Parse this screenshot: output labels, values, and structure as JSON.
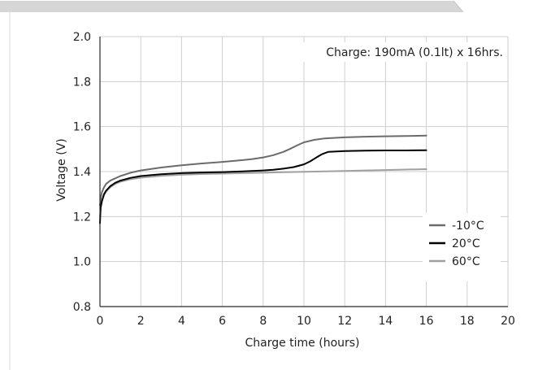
{
  "chart_data": {
    "type": "line",
    "title": "",
    "annotation": "Charge: 190mA (0.1lt) x 16hrs.",
    "xlabel": "Charge time (hours)",
    "ylabel": "Voltage (V)",
    "xlim": [
      0,
      20
    ],
    "ylim": [
      0.8,
      2.0
    ],
    "xticks": [
      "0",
      "2",
      "4",
      "6",
      "8",
      "10",
      "12",
      "14",
      "16",
      "18",
      "20"
    ],
    "yticks": [
      "0.8",
      "1.0",
      "1.2",
      "1.4",
      "1.6",
      "1.8",
      "2.0"
    ],
    "grid": true,
    "legend_position": "bottom-right",
    "series": [
      {
        "name": "-10°C",
        "color": "#6b6b6b",
        "x": [
          0,
          0.05,
          0.1,
          0.2,
          0.3,
          0.5,
          0.75,
          1,
          1.5,
          2,
          3,
          4,
          5,
          6,
          7,
          7.5,
          8,
          8.5,
          9,
          9.3,
          9.7,
          10,
          10.5,
          11,
          12,
          13,
          14,
          15,
          16
        ],
        "y": [
          1.25,
          1.29,
          1.31,
          1.33,
          1.345,
          1.36,
          1.37,
          1.38,
          1.395,
          1.405,
          1.418,
          1.428,
          1.436,
          1.443,
          1.451,
          1.456,
          1.463,
          1.473,
          1.488,
          1.5,
          1.518,
          1.53,
          1.541,
          1.547,
          1.552,
          1.555,
          1.557,
          1.558,
          1.56
        ]
      },
      {
        "name": "20°C",
        "color": "#000000",
        "x": [
          0,
          0.03,
          0.1,
          0.2,
          0.3,
          0.5,
          0.75,
          1,
          1.5,
          2,
          3,
          4,
          5,
          6,
          7,
          8,
          8.5,
          9,
          9.5,
          10,
          10.3,
          10.6,
          10.9,
          11.2,
          12,
          13,
          14,
          15,
          16
        ],
        "y": [
          1.17,
          1.24,
          1.27,
          1.3,
          1.315,
          1.335,
          1.35,
          1.36,
          1.372,
          1.38,
          1.388,
          1.393,
          1.396,
          1.398,
          1.401,
          1.405,
          1.408,
          1.413,
          1.42,
          1.432,
          1.445,
          1.462,
          1.478,
          1.488,
          1.491,
          1.493,
          1.494,
          1.494,
          1.495
        ]
      },
      {
        "name": "60°C",
        "color": "#a0a0a0",
        "x": [
          0,
          0.05,
          0.1,
          0.2,
          0.3,
          0.5,
          0.75,
          1,
          1.5,
          2,
          3,
          4,
          5,
          6,
          7,
          8,
          9,
          10,
          11,
          12,
          13,
          14,
          15,
          16
        ],
        "y": [
          1.2,
          1.25,
          1.27,
          1.295,
          1.31,
          1.33,
          1.345,
          1.355,
          1.366,
          1.373,
          1.381,
          1.386,
          1.389,
          1.391,
          1.393,
          1.395,
          1.397,
          1.399,
          1.401,
          1.403,
          1.405,
          1.407,
          1.409,
          1.411
        ]
      }
    ]
  }
}
